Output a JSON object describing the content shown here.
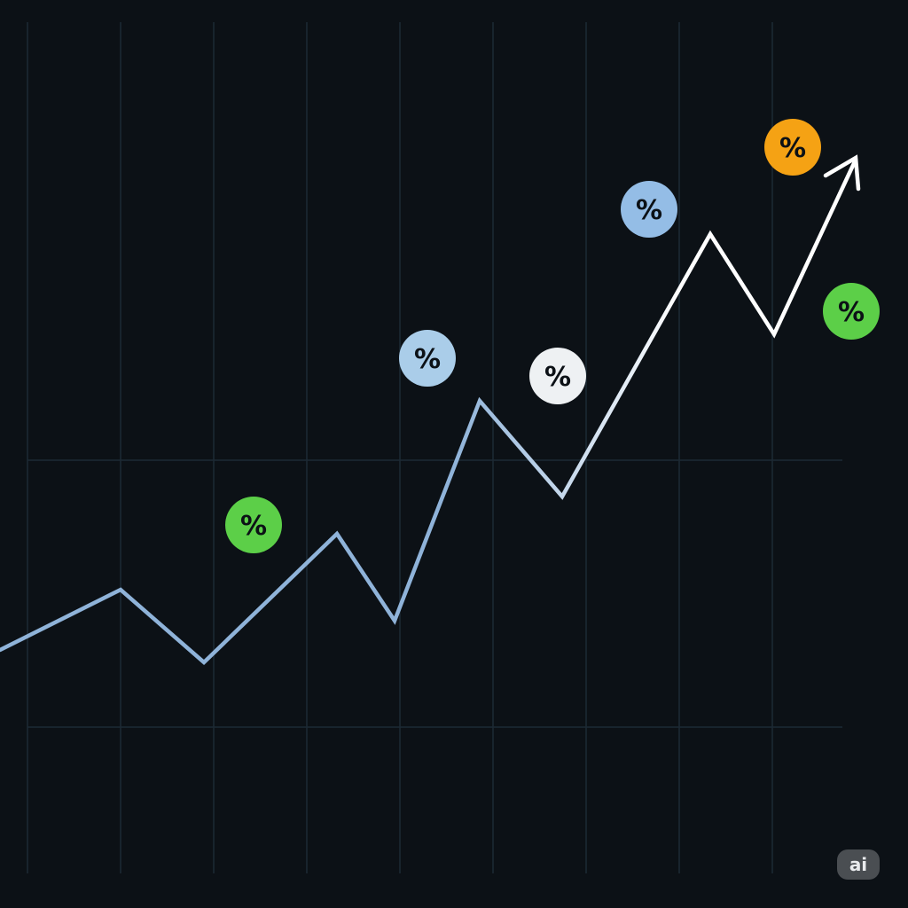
{
  "chart_data": {
    "type": "line",
    "title": "",
    "xlabel": "",
    "ylabel": "",
    "grid": true,
    "x": [
      0,
      1,
      2,
      3,
      4,
      5,
      6,
      7,
      8,
      9,
      10
    ],
    "series": [
      {
        "values": [
          3,
          7,
          1.5,
          16,
          5,
          33,
          25,
          59,
          54,
          67,
          62
        ]
      }
    ],
    "trend_arrow": true,
    "markers": [
      {
        "label": "%",
        "x": 2.6,
        "y": 21,
        "color": "#5ccf48"
      },
      {
        "label": "%",
        "x": 4.9,
        "y": 43,
        "color": "#aacde9"
      },
      {
        "label": "%",
        "x": 6.3,
        "y": 40,
        "color": "#eef1f3"
      },
      {
        "label": "%",
        "x": 7.5,
        "y": 74,
        "color": "#94bde6"
      },
      {
        "label": "%",
        "x": 9.1,
        "y": 81,
        "color": "#f5a214"
      },
      {
        "label": "%",
        "x": 10.0,
        "y": 67,
        "color": "#5ccf48"
      }
    ],
    "line_color_start": "#8fb3d9",
    "line_color_end": "#ffffff",
    "background": "#0c1116",
    "grid_color": "#1d2a35"
  },
  "watermark": {
    "label": "ai"
  }
}
